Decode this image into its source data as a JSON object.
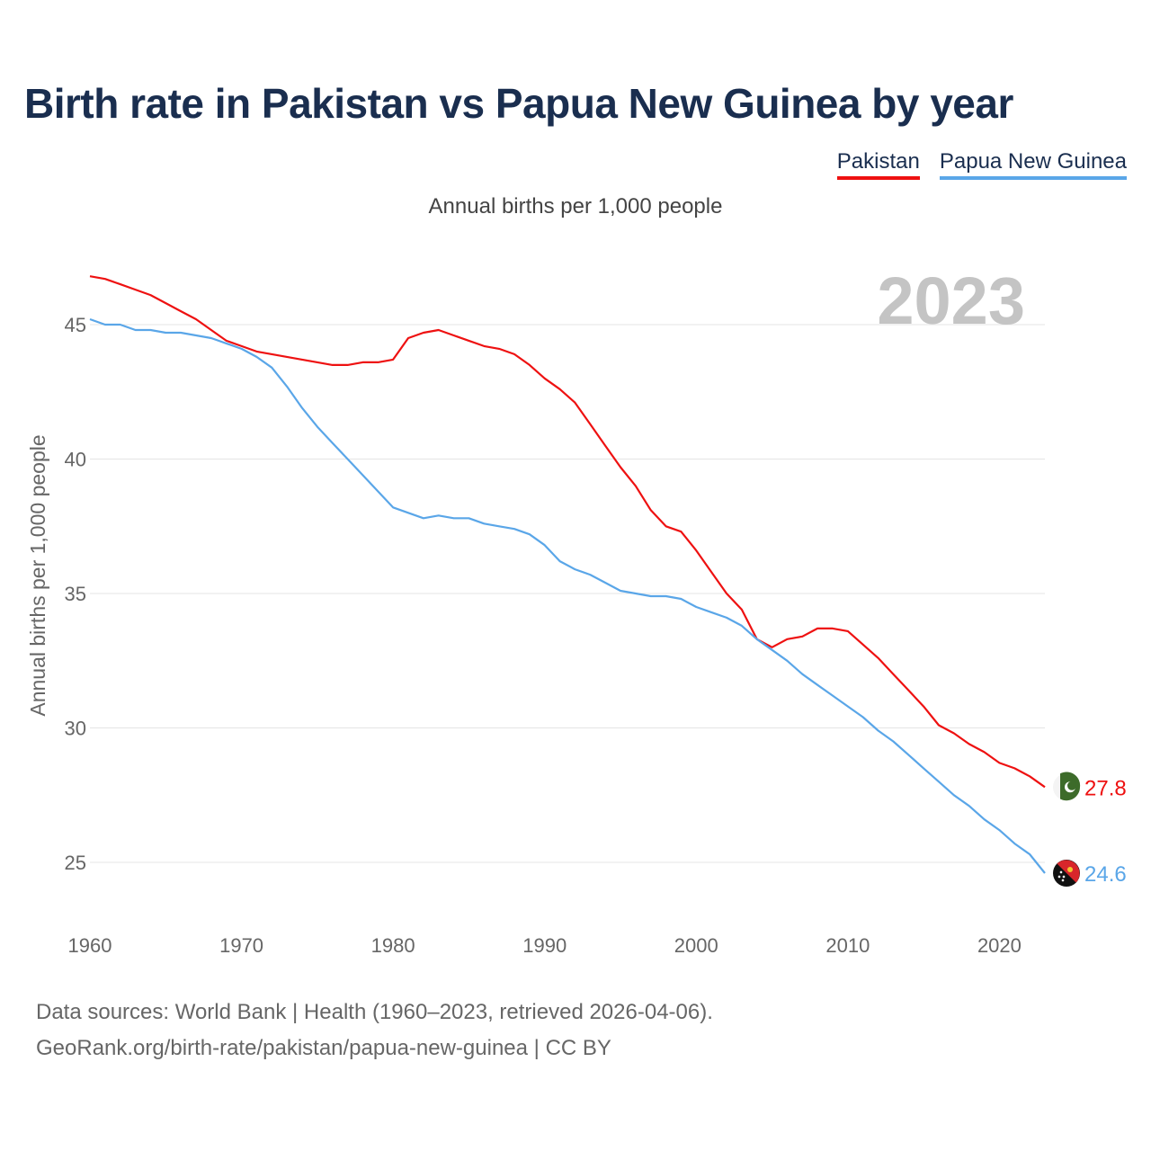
{
  "header": {
    "title": "Birth rate in Pakistan vs Papua New Guinea by year",
    "subtitle": "Annual births per 1,000 people"
  },
  "legend": [
    {
      "label": "Pakistan",
      "color": "#ee1111"
    },
    {
      "label": "Papua New Guinea",
      "color": "#5aa6e8"
    }
  ],
  "footer": {
    "source_line1": "Data sources: World Bank | Health (1960–2023, retrieved 2026-04-06).",
    "source_line2": "GeoRank.org/birth-rate/pakistan/papua-new-guinea | CC BY"
  },
  "chart_data": {
    "type": "line",
    "title": "Birth rate in Pakistan vs Papua New Guinea by year",
    "ylabel": "Annual births per 1,000 people",
    "xlabel": "",
    "current_year_label": "2023",
    "xlim": [
      1960,
      2023
    ],
    "ylim": [
      23.5,
      47
    ],
    "x_ticks": [
      1960,
      1970,
      1980,
      1990,
      2000,
      2010,
      2020
    ],
    "y_ticks": [
      25,
      30,
      35,
      40,
      45
    ],
    "grid": true,
    "x": [
      1960,
      1961,
      1962,
      1963,
      1964,
      1965,
      1966,
      1967,
      1968,
      1969,
      1970,
      1971,
      1972,
      1973,
      1974,
      1975,
      1976,
      1977,
      1978,
      1979,
      1980,
      1981,
      1982,
      1983,
      1984,
      1985,
      1986,
      1987,
      1988,
      1989,
      1990,
      1991,
      1992,
      1993,
      1994,
      1995,
      1996,
      1997,
      1998,
      1999,
      2000,
      2001,
      2002,
      2003,
      2004,
      2005,
      2006,
      2007,
      2008,
      2009,
      2010,
      2011,
      2012,
      2013,
      2014,
      2015,
      2016,
      2017,
      2018,
      2019,
      2020,
      2021,
      2022,
      2023
    ],
    "series": [
      {
        "name": "Pakistan",
        "color": "#ee1111",
        "end_label": "27.8",
        "values": [
          46.8,
          46.7,
          46.5,
          46.3,
          46.1,
          45.8,
          45.5,
          45.2,
          44.8,
          44.4,
          44.2,
          44.0,
          43.9,
          43.8,
          43.7,
          43.6,
          43.5,
          43.5,
          43.6,
          43.6,
          43.7,
          44.5,
          44.7,
          44.8,
          44.6,
          44.4,
          44.2,
          44.1,
          43.9,
          43.5,
          43.0,
          42.6,
          42.1,
          41.3,
          40.5,
          39.7,
          39.0,
          38.1,
          37.5,
          37.3,
          36.6,
          35.8,
          35.0,
          34.4,
          33.3,
          33.0,
          33.3,
          33.4,
          33.7,
          33.7,
          33.6,
          33.1,
          32.6,
          32.0,
          31.4,
          30.8,
          30.1,
          29.8,
          29.4,
          29.1,
          28.7,
          28.5,
          28.2,
          27.8
        ]
      },
      {
        "name": "Papua New Guinea",
        "color": "#5aa6e8",
        "end_label": "24.6",
        "values": [
          45.2,
          45.0,
          45.0,
          44.8,
          44.8,
          44.7,
          44.7,
          44.6,
          44.5,
          44.3,
          44.1,
          43.8,
          43.4,
          42.7,
          41.9,
          41.2,
          40.6,
          40.0,
          39.4,
          38.8,
          38.2,
          38.0,
          37.8,
          37.9,
          37.8,
          37.8,
          37.6,
          37.5,
          37.4,
          37.2,
          36.8,
          36.2,
          35.9,
          35.7,
          35.4,
          35.1,
          35.0,
          34.9,
          34.9,
          34.8,
          34.5,
          34.3,
          34.1,
          33.8,
          33.3,
          32.9,
          32.5,
          32.0,
          31.6,
          31.2,
          30.8,
          30.4,
          29.9,
          29.5,
          29.0,
          28.5,
          28.0,
          27.5,
          27.1,
          26.6,
          26.2,
          25.7,
          25.3,
          24.6
        ]
      }
    ]
  }
}
